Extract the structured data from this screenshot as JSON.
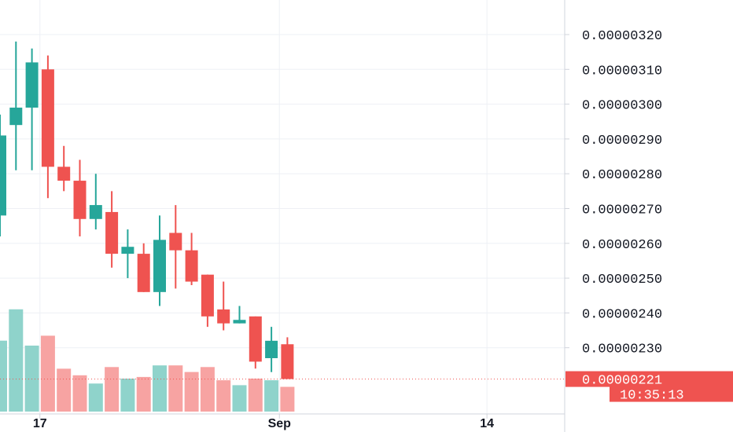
{
  "chart_data": {
    "type": "candlestick",
    "y_axis": {
      "min": 2.05e-06,
      "max": 3.29e-06,
      "ticks": [
        "0.00000320",
        "0.00000310",
        "0.00000300",
        "0.00000290",
        "0.00000280",
        "0.00000270",
        "0.00000260",
        "0.00000250",
        "0.00000240",
        "0.00000230"
      ],
      "position": "right"
    },
    "x_axis": {
      "ticks": [
        {
          "label": "17",
          "index": 2.5
        },
        {
          "label": "Sep",
          "index": 17.5
        },
        {
          "label": "14",
          "index": 30.5
        }
      ]
    },
    "grid": true,
    "colors": {
      "up": "#26a69a",
      "down": "#ef5350",
      "up_volume": "#8fd3cb",
      "down_volume": "#f7a3a2",
      "grid": "#eef0f5",
      "axis_line": "#d1d4dc",
      "last_price_line": "#ef5350"
    },
    "candles": [
      {
        "o": 2.68e-06,
        "h": 2.97e-06,
        "l": 2.62e-06,
        "c": 2.91e-06,
        "v": 0.43
      },
      {
        "o": 2.94e-06,
        "h": 3.18e-06,
        "l": 2.81e-06,
        "c": 2.99e-06,
        "v": 0.62
      },
      {
        "o": 2.99e-06,
        "h": 3.16e-06,
        "l": 2.81e-06,
        "c": 3.12e-06,
        "v": 0.4
      },
      {
        "o": 3.1e-06,
        "h": 3.14e-06,
        "l": 2.73e-06,
        "c": 2.82e-06,
        "v": 0.46
      },
      {
        "o": 2.82e-06,
        "h": 2.88e-06,
        "l": 2.75e-06,
        "c": 2.78e-06,
        "v": 0.26
      },
      {
        "o": 2.78e-06,
        "h": 2.84e-06,
        "l": 2.62e-06,
        "c": 2.67e-06,
        "v": 0.22
      },
      {
        "o": 2.67e-06,
        "h": 2.8e-06,
        "l": 2.64e-06,
        "c": 2.71e-06,
        "v": 0.17
      },
      {
        "o": 2.69e-06,
        "h": 2.75e-06,
        "l": 2.53e-06,
        "c": 2.57e-06,
        "v": 0.27
      },
      {
        "o": 2.57e-06,
        "h": 2.64e-06,
        "l": 2.5e-06,
        "c": 2.59e-06,
        "v": 0.2
      },
      {
        "o": 2.57e-06,
        "h": 2.6e-06,
        "l": 2.46e-06,
        "c": 2.46e-06,
        "v": 0.21
      },
      {
        "o": 2.46e-06,
        "h": 2.68e-06,
        "l": 2.42e-06,
        "c": 2.61e-06,
        "v": 0.28
      },
      {
        "o": 2.63e-06,
        "h": 2.71e-06,
        "l": 2.47e-06,
        "c": 2.58e-06,
        "v": 0.28
      },
      {
        "o": 2.58e-06,
        "h": 2.63e-06,
        "l": 2.48e-06,
        "c": 2.49e-06,
        "v": 0.24
      },
      {
        "o": 2.51e-06,
        "h": 2.51e-06,
        "l": 2.36e-06,
        "c": 2.39e-06,
        "v": 0.27
      },
      {
        "o": 2.41e-06,
        "h": 2.49e-06,
        "l": 2.35e-06,
        "c": 2.37e-06,
        "v": 0.19
      },
      {
        "o": 2.37e-06,
        "h": 2.42e-06,
        "l": 2.37e-06,
        "c": 2.38e-06,
        "v": 0.16
      },
      {
        "o": 2.39e-06,
        "h": 2.39e-06,
        "l": 2.24e-06,
        "c": 2.26e-06,
        "v": 0.2
      },
      {
        "o": 2.27e-06,
        "h": 2.36e-06,
        "l": 2.23e-06,
        "c": 2.32e-06,
        "v": 0.19
      },
      {
        "o": 2.31e-06,
        "h": 2.33e-06,
        "l": 2.21e-06,
        "c": 2.21e-06,
        "v": 0.15
      }
    ],
    "last_price": {
      "value": 2.21e-06,
      "label": "0.00000221",
      "countdown": "10:35:13"
    }
  }
}
